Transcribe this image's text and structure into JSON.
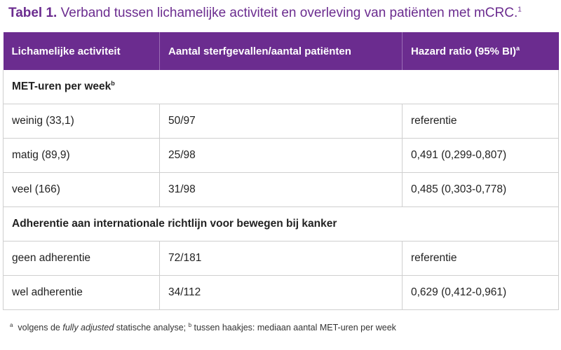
{
  "title": {
    "lead": "Tabel 1.",
    "text": " Verband tussen lichamelijke activiteit en overleving van patiënten met mCRC.",
    "ref": "1"
  },
  "header": {
    "col1": "Lichamelijke activiteit",
    "col2": "Aantal sterfgevallen/aantal patiënten",
    "col3": "Hazard ratio (95% BI)",
    "col3_sup": "a"
  },
  "section1": {
    "label": "MET-uren per week",
    "sup": "b"
  },
  "section1_rows": [
    {
      "activity": "weinig (33,1)",
      "deaths": "50/97",
      "hr": "referentie"
    },
    {
      "activity": "matig (89,9)",
      "deaths": "25/98",
      "hr": "0,491 (0,299-0,807)"
    },
    {
      "activity": "veel (166)",
      "deaths": "31/98",
      "hr": "0,485 (0,303-0,778)"
    }
  ],
  "section2": {
    "label": "Adherentie aan internationale richtlijn voor bewegen bij kanker"
  },
  "section2_rows": [
    {
      "activity": "geen adherentie",
      "deaths": "72/181",
      "hr": "referentie"
    },
    {
      "activity": "wel adherentie",
      "deaths": "34/112",
      "hr": "0,629 (0,412-0,961)"
    }
  ],
  "footnote": {
    "a_mark": "a",
    "a_pre": "  volgens de ",
    "a_em": "fully adjusted",
    "a_post": " statische analyse; ",
    "b_mark": "b",
    "b_text": " tussen haakjes: mediaan aantal MET-uren per week"
  }
}
